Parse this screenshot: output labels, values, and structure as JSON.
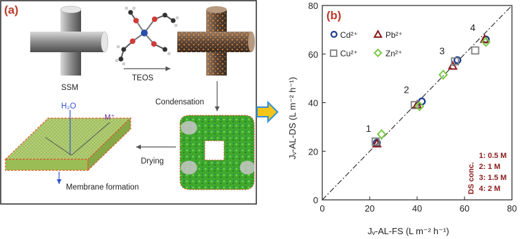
{
  "panel_a": {
    "tag": "(a)",
    "labels": {
      "ssm": "SSM",
      "teos": "TEOS",
      "condensation": "Condensation",
      "drying": "Drying",
      "membrane_formation": "Membrane formation",
      "water": "H₂O",
      "metal_ion": "M⁺"
    }
  },
  "chart_data": {
    "type": "scatter",
    "panel_tag": "(b)",
    "xlabel": "Jᵥ-AL-FS (L m⁻² h⁻¹)",
    "ylabel": "Jᵥ-AL-DS (L m⁻² h⁻¹)",
    "xlim": [
      0,
      80
    ],
    "ylim": [
      0,
      80
    ],
    "xticks": [
      "0",
      "20",
      "40",
      "60",
      "80"
    ],
    "yticks": [
      "0",
      "20",
      "40",
      "60",
      "80"
    ],
    "legend_position": "top-left",
    "series": [
      {
        "name": "Cd²⁺",
        "marker": "circle",
        "color": "#1f3f8f",
        "x": [
          23,
          42,
          57,
          69
        ],
        "y": [
          23.5,
          40.5,
          57.5,
          66
        ]
      },
      {
        "name": "Pb²⁺",
        "marker": "triangle",
        "color": "#8b1a1a",
        "x": [
          23,
          40,
          55,
          68.5
        ],
        "y": [
          23,
          39,
          55,
          66
        ]
      },
      {
        "name": "Cu²⁺",
        "marker": "square",
        "color": "#808080",
        "x": [
          22.5,
          39,
          56,
          64.5
        ],
        "y": [
          24,
          39,
          57,
          61.5
        ]
      },
      {
        "name": "Zn²⁺",
        "marker": "diamond",
        "color": "#7ac943",
        "x": [
          25,
          41,
          51,
          69
        ],
        "y": [
          27,
          38.5,
          51.5,
          65
        ]
      }
    ],
    "diagonal": {
      "style": "dash-dot",
      "from": [
        0,
        0
      ],
      "to": [
        80,
        80
      ]
    },
    "point_labels": [
      {
        "text": "1",
        "x": 19.5,
        "y": 28
      },
      {
        "text": "2",
        "x": 35.5,
        "y": 44
      },
      {
        "text": "3",
        "x": 50.5,
        "y": 60
      },
      {
        "text": "4",
        "x": 63.5,
        "y": 69.5
      }
    ],
    "annotation": {
      "title": "DS conc.",
      "lines": [
        "1: 0.5 M",
        "2: 1 M",
        "3: 1.5 M",
        "4: 2 M"
      ],
      "color": "#8b1a1a"
    }
  }
}
